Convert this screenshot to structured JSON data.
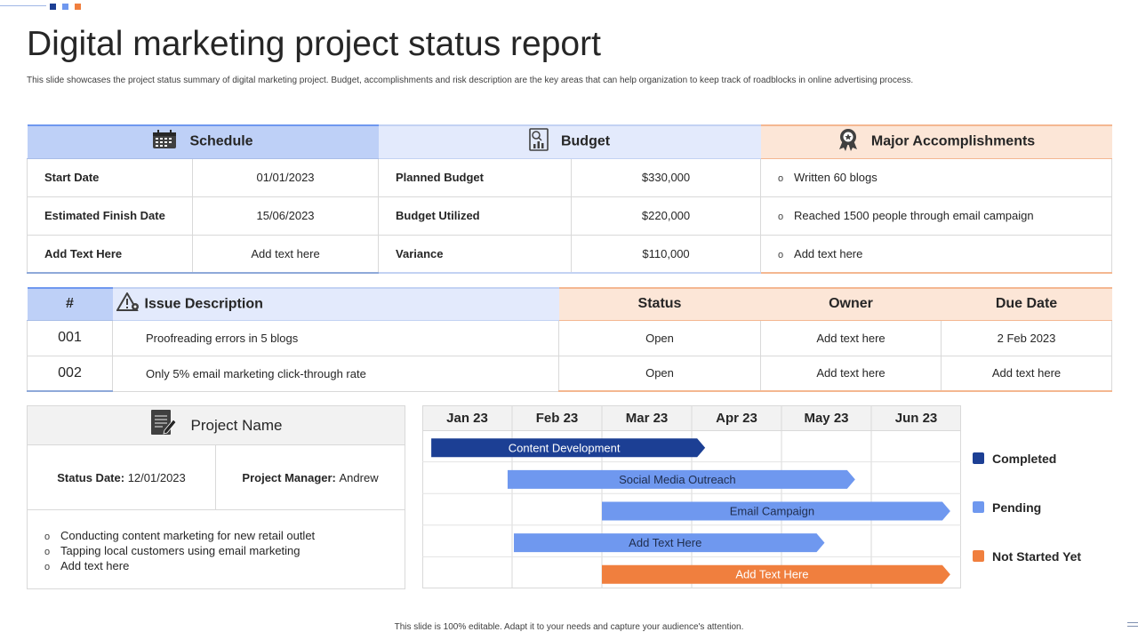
{
  "title": "Digital marketing project status report",
  "subtitle": "This slide showcases the project status summary of digital marketing project. Budget, accomplishments and risk description are the key areas that can help organization to keep track of roadblocks in online advertising process.",
  "colors": {
    "blue_dark": "#1c3f94",
    "blue_light": "#6f98ef",
    "orange": "#f07f3e",
    "schedule_header": "#bed0f7",
    "budget_header": "#e3eafc",
    "accomplish_header": "#fce6d7"
  },
  "summary": {
    "schedule": {
      "header": "Schedule",
      "rows": [
        {
          "label": "Start Date",
          "value": "01/01/2023"
        },
        {
          "label": "Estimated Finish Date",
          "value": "15/06/2023"
        },
        {
          "label": "Add Text Here",
          "value": "Add text here"
        }
      ]
    },
    "budget": {
      "header": "Budget",
      "rows": [
        {
          "label": "Planned Budget",
          "value": "$330,000"
        },
        {
          "label": "Budget Utilized",
          "value": "$220,000"
        },
        {
          "label": "Variance",
          "value": "$110,000"
        }
      ]
    },
    "accomplishments": {
      "header": "Major Accomplishments",
      "items": [
        "Written 60 blogs",
        "Reached  1500 people through email campaign",
        "Add text here"
      ]
    },
    "bullet_glyph": "o"
  },
  "issues": {
    "headers": {
      "num": "#",
      "description": "Issue  Description",
      "status": "Status",
      "owner": "Owner",
      "due": "Due Date"
    },
    "rows": [
      {
        "num": "001",
        "description": "Proofreading  errors  in 5 blogs",
        "status": "Open",
        "owner": "Add text here",
        "due": "2 Feb 2023"
      },
      {
        "num": "002",
        "description": "Only 5% email marketing click-through rate",
        "status": "Open",
        "owner": "Add text here",
        "due": "Add text here"
      }
    ]
  },
  "project": {
    "header": "Project Name",
    "status_label": "Status Date:",
    "status_value": "12/01/2023",
    "manager_label": "Project Manager:",
    "manager_value": "Andrew",
    "items": [
      "Conducting content marketing for new retail outlet",
      "Tapping local customers using email marketing",
      "Add text here"
    ]
  },
  "chart_data": {
    "type": "gantt",
    "categories": [
      "Jan 23",
      "Feb 23",
      "Mar 23",
      "Apr 23",
      "May 23",
      "Jun 23"
    ],
    "tasks": [
      {
        "name": "Content Development",
        "start": 0.1,
        "end": 3.15,
        "status": "Completed"
      },
      {
        "name": "Social Media Outreach",
        "start": 0.95,
        "end": 4.82,
        "status": "Pending"
      },
      {
        "name": "Email Campaign",
        "start": 2.0,
        "end": 5.88,
        "status": "Pending"
      },
      {
        "name": "Add Text Here",
        "start": 1.02,
        "end": 4.48,
        "status": "Pending"
      },
      {
        "name": "Add Text Here",
        "start": 2.0,
        "end": 5.88,
        "status": "Not Started Yet"
      }
    ],
    "legend": [
      {
        "label": "Completed",
        "color": "#1c3f94"
      },
      {
        "label": "Pending",
        "color": "#6f98ef"
      },
      {
        "label": "Not Started Yet",
        "color": "#f07f3e"
      }
    ]
  },
  "footer": "This slide is 100% editable.  Adapt it to your needs and capture your audience's attention."
}
